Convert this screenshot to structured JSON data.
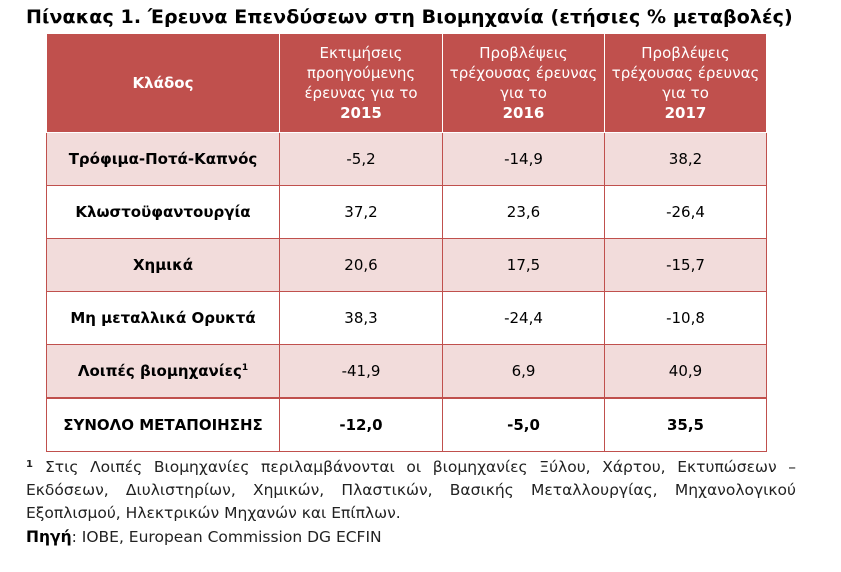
{
  "title": "Πίνακας 1. Έρευνα Επενδύσεων στη Βιομηχανία (ετήσιες % μεταβολές)",
  "table": {
    "key_header": "Κλάδος",
    "columns": [
      {
        "label": "Εκτιμήσεις προηγούμενης έρευνας για το",
        "year": "2015"
      },
      {
        "label": "Προβλέψεις τρέχουσας έρευνας για το",
        "year": "2016"
      },
      {
        "label": "Προβλέψεις τρέχουσας έρευνας για το",
        "year": "2017"
      }
    ],
    "rows": [
      {
        "sector": "Τρόφιμα-Ποτά-Καπνός",
        "note": "",
        "values": [
          "-5,2",
          "-14,9",
          "38,2"
        ]
      },
      {
        "sector": "Κλωστοϋφαντουργία",
        "note": "",
        "values": [
          "37,2",
          "23,6",
          "-26,4"
        ]
      },
      {
        "sector": "Χημικά",
        "note": "",
        "values": [
          "20,6",
          "17,5",
          "-15,7"
        ]
      },
      {
        "sector": "Μη μεταλλικά Ορυκτά",
        "note": "",
        "values": [
          "38,3",
          "-24,4",
          "-10,8"
        ]
      },
      {
        "sector": "Λοιπές βιομηχανίες",
        "note": "1",
        "values": [
          "-41,9",
          "6,9",
          "40,9"
        ]
      }
    ],
    "total": {
      "sector": "ΣΥΝΟΛΟ ΜΕΤΑΠΟΙΗΣΗΣ",
      "values": [
        "-12,0",
        "-5,0",
        "35,5"
      ]
    }
  },
  "footnote": {
    "marker": "1",
    "text": "Στις Λοιπές Βιομηχανίες περιλαμβάνονται οι βιομηχανίες Ξύλου, Χάρτου, Εκτυπώσεων – Εκδόσεων, Διυλιστηρίων, Χημικών, Πλαστικών, Βασικής Μεταλλουργίας, Μηχανολογικού Εξοπλισμού, Ηλεκτρικών Μηχανών και Επίπλων."
  },
  "source": {
    "label": "Πηγή",
    "text": ": IOBE, European Commission DG ECFIN"
  },
  "colors": {
    "header_bg": "#c0504d",
    "band_bg": "#f2dcdb",
    "border": "#c0504d"
  }
}
